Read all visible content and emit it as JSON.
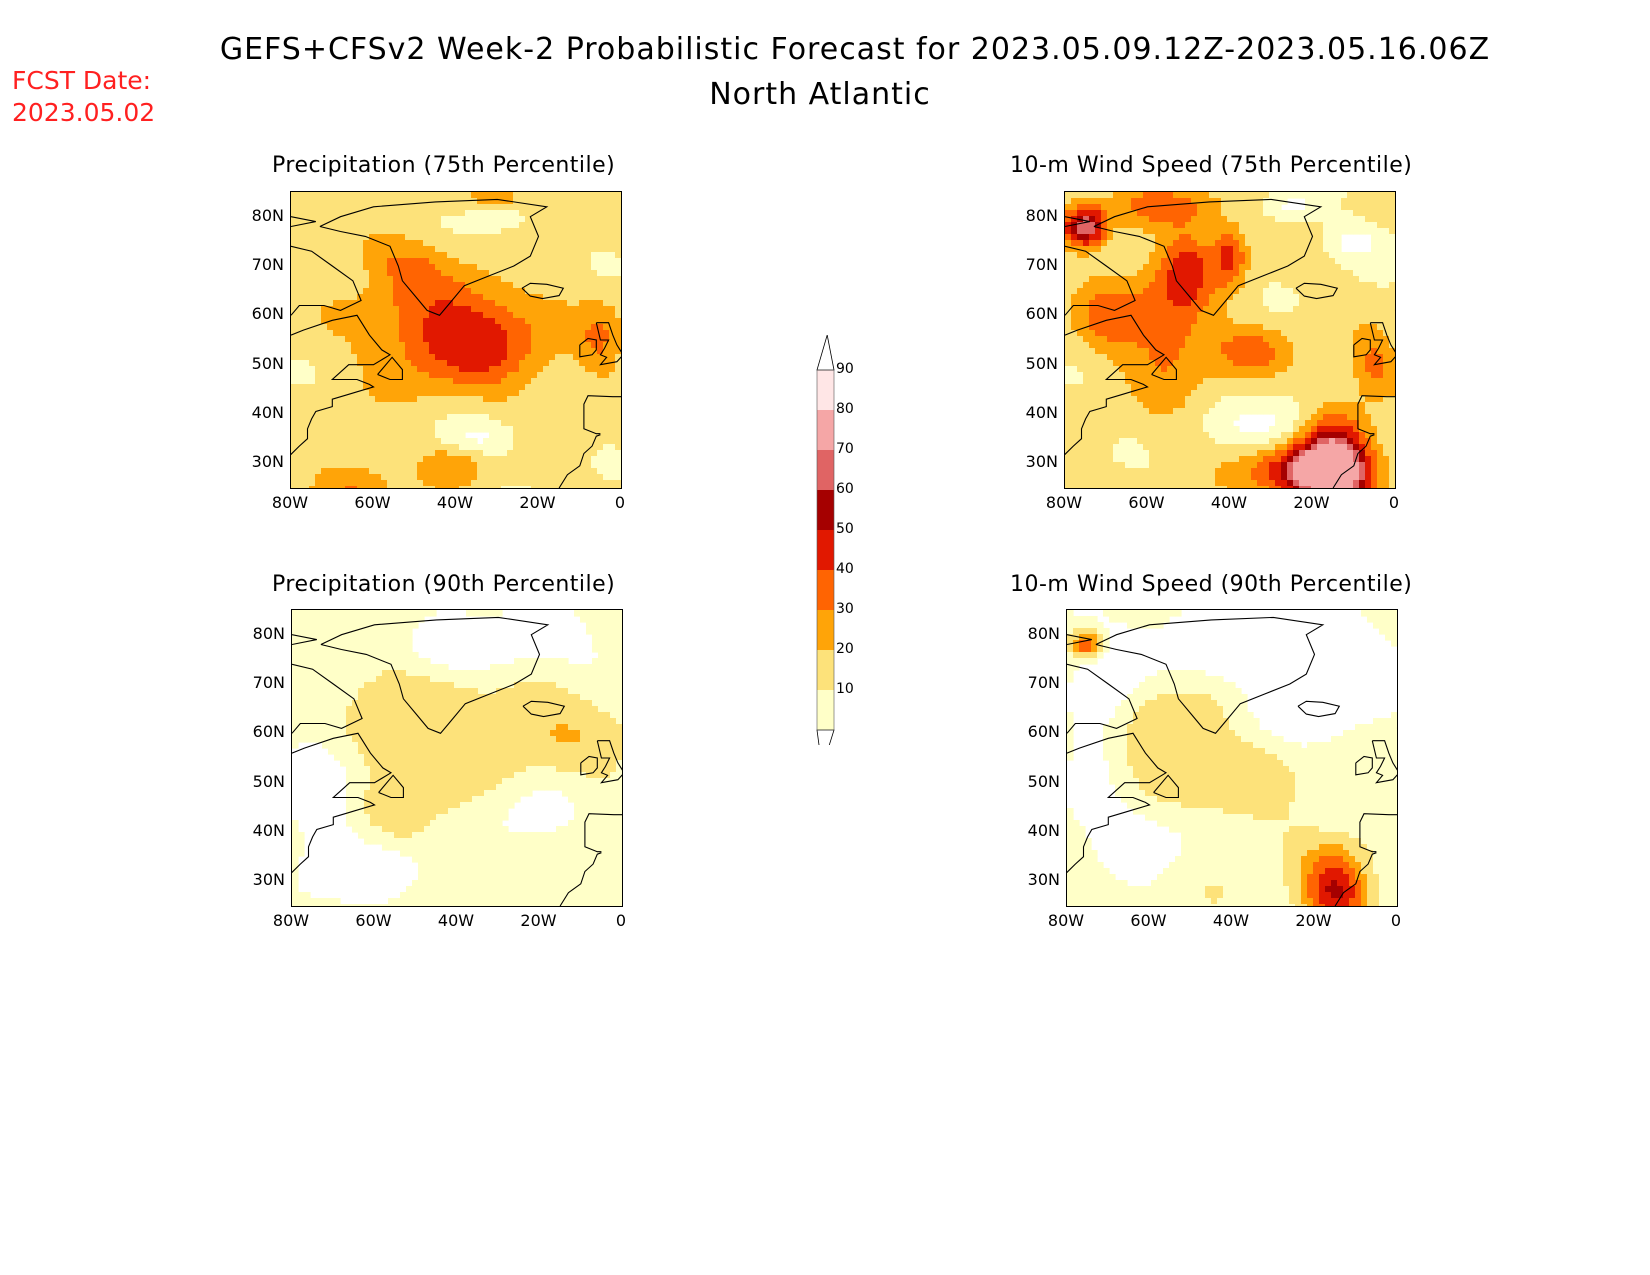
{
  "header": {
    "title": "GEFS+CFSv2 Week-2 Probabilistic Forecast for 2023.05.09.12Z-2023.05.16.06Z",
    "subtitle": "North Atlantic",
    "fcst_label": "FCST Date:",
    "fcst_value": "2023.05.02"
  },
  "colors": {
    "levels": [
      "#ffffc8",
      "#fde27a",
      "#ffa408",
      "#ff6402",
      "#e11800",
      "#a50000",
      "#e06464",
      "#f5a6a6",
      "#ffe6e6"
    ],
    "coast": "#000000",
    "alert": "#ff2020"
  },
  "colorbar": {
    "levels": [
      "10",
      "20",
      "30",
      "40",
      "50",
      "60",
      "70",
      "80",
      "90"
    ]
  },
  "axes": {
    "lat_ticks": [
      "80N",
      "70N",
      "60N",
      "50N",
      "40N",
      "30N"
    ],
    "lon_ticks": [
      "80W",
      "60W",
      "40W",
      "20W",
      "0"
    ]
  },
  "panels": [
    {
      "title": "Precipitation (75th Percentile)",
      "field": "precip75",
      "max_level": 4
    },
    {
      "title": "10-m Wind Speed (75th Percentile)",
      "field": "wind75",
      "max_level": 7
    },
    {
      "title": "Precipitation (90th Percentile)",
      "field": "precip90",
      "max_level": 2
    },
    {
      "title": "10-m Wind Speed (90th Percentile)",
      "field": "wind90",
      "max_level": 5
    }
  ]
}
